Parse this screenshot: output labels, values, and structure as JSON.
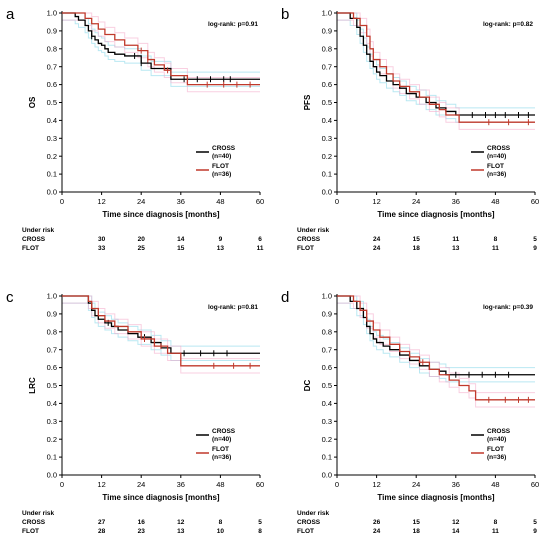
{
  "colors": {
    "cross": "#000000",
    "flot": "#c0392b",
    "ci_cross": "#7fd6e8",
    "ci_flot": "#f4a7c8"
  },
  "chart_data": [
    {
      "id": "a",
      "type": "line",
      "panel_label": "a",
      "ylabel": "OS",
      "xlabel": "Time since diagnosis [months]",
      "logrank": "log-rank: p=0.91",
      "xlim": [
        0,
        60
      ],
      "ylim": [
        0,
        1.0
      ],
      "xticks": [
        "0",
        "12",
        "24",
        "36",
        "48",
        "60"
      ],
      "yticks": [
        "0.0",
        "0.1",
        "0.2",
        "0.3",
        "0.4",
        "0.5",
        "0.6",
        "0.7",
        "0.8",
        "0.9",
        "1.0"
      ],
      "legend": {
        "position": "lower-right",
        "entries": [
          {
            "name": "CROSS",
            "sub": "(n=40)",
            "series": "cross"
          },
          {
            "name": "FLOT",
            "sub": "(n=36)",
            "series": "flot"
          }
        ]
      },
      "series": [
        {
          "key": "cross",
          "name": "CROSS",
          "x": [
            0,
            4,
            5,
            7,
            8,
            9,
            10,
            11,
            12,
            13,
            14,
            16,
            19,
            21,
            24,
            27,
            33,
            60
          ],
          "y": [
            1.0,
            0.98,
            0.96,
            0.93,
            0.9,
            0.87,
            0.85,
            0.83,
            0.82,
            0.8,
            0.78,
            0.77,
            0.76,
            0.76,
            0.72,
            0.69,
            0.63,
            0.63
          ],
          "censor": [
            [
              9,
              0.87
            ],
            [
              22,
              0.76
            ],
            [
              24,
              0.72
            ],
            [
              37,
              0.63
            ],
            [
              41,
              0.63
            ],
            [
              45,
              0.63
            ],
            [
              49,
              0.63
            ],
            [
              51,
              0.63
            ]
          ]
        },
        {
          "key": "flot",
          "name": "FLOT",
          "x": [
            0,
            7,
            9,
            11,
            13,
            16,
            19,
            23,
            26,
            28,
            31,
            33,
            38,
            60
          ],
          "y": [
            1.0,
            0.97,
            0.94,
            0.91,
            0.88,
            0.85,
            0.82,
            0.79,
            0.74,
            0.71,
            0.68,
            0.65,
            0.6,
            0.6
          ],
          "censor": [
            [
              24,
              0.79
            ],
            [
              26,
              0.74
            ],
            [
              32,
              0.68
            ],
            [
              44,
              0.6
            ],
            [
              49,
              0.6
            ],
            [
              53,
              0.6
            ],
            [
              57,
              0.6
            ]
          ]
        }
      ],
      "risk": {
        "heading": "Under risk",
        "times": [
          0,
          12,
          24,
          36,
          48,
          60
        ],
        "rows": [
          {
            "label": "CROSS",
            "values": [
              "",
              "30",
              "20",
              "14",
              "9",
              "6"
            ]
          },
          {
            "label": "FLOT",
            "values": [
              "",
              "33",
              "25",
              "15",
              "13",
              "11"
            ]
          }
        ]
      }
    },
    {
      "id": "b",
      "type": "line",
      "panel_label": "b",
      "ylabel": "PFS",
      "xlabel": "Time since diagnosis [months]",
      "logrank": "log-rank: p=0.82",
      "xlim": [
        0,
        60
      ],
      "ylim": [
        0,
        1.0
      ],
      "xticks": [
        "0",
        "12",
        "24",
        "36",
        "48",
        "60"
      ],
      "yticks": [
        "0.0",
        "0.1",
        "0.2",
        "0.3",
        "0.4",
        "0.5",
        "0.6",
        "0.7",
        "0.8",
        "0.9",
        "1.0"
      ],
      "legend": {
        "position": "lower-right",
        "entries": [
          {
            "name": "CROSS",
            "sub": "(n=40)",
            "series": "cross"
          },
          {
            "name": "FLOT",
            "sub": "(n=36)",
            "series": "flot"
          }
        ]
      },
      "series": [
        {
          "key": "cross",
          "name": "CROSS",
          "x": [
            0,
            4,
            6,
            7,
            8,
            9,
            10,
            11,
            12,
            13,
            15,
            17,
            19,
            21,
            24,
            27,
            30,
            33,
            36,
            60
          ],
          "y": [
            1.0,
            0.97,
            0.92,
            0.87,
            0.82,
            0.77,
            0.73,
            0.7,
            0.67,
            0.65,
            0.62,
            0.6,
            0.58,
            0.55,
            0.53,
            0.5,
            0.47,
            0.45,
            0.43,
            0.43
          ],
          "censor": [
            [
              41,
              0.43
            ],
            [
              45,
              0.43
            ],
            [
              48,
              0.43
            ],
            [
              51,
              0.43
            ],
            [
              55,
              0.43
            ],
            [
              58,
              0.43
            ]
          ]
        },
        {
          "key": "flot",
          "name": "FLOT",
          "x": [
            0,
            5,
            7,
            9,
            10,
            11,
            13,
            15,
            17,
            19,
            22,
            25,
            28,
            31,
            33,
            37,
            60
          ],
          "y": [
            1.0,
            0.97,
            0.93,
            0.87,
            0.8,
            0.74,
            0.7,
            0.66,
            0.62,
            0.59,
            0.56,
            0.53,
            0.49,
            0.46,
            0.43,
            0.39,
            0.39
          ],
          "censor": [
            [
              46,
              0.39
            ],
            [
              52,
              0.39
            ],
            [
              58,
              0.39
            ]
          ]
        }
      ],
      "risk": {
        "heading": "Under risk",
        "times": [
          0,
          12,
          24,
          36,
          48,
          60
        ],
        "rows": [
          {
            "label": "CROSS",
            "values": [
              "",
              "24",
              "15",
              "11",
              "8",
              "5"
            ]
          },
          {
            "label": "FLOT",
            "values": [
              "",
              "24",
              "18",
              "13",
              "11",
              "9"
            ]
          }
        ]
      }
    },
    {
      "id": "c",
      "type": "line",
      "panel_label": "c",
      "ylabel": "LRC",
      "xlabel": "Time since diagnosis [months]",
      "logrank": "log-rank: p=0.81",
      "xlim": [
        0,
        60
      ],
      "ylim": [
        0,
        1.0
      ],
      "xticks": [
        "0",
        "12",
        "24",
        "36",
        "48",
        "60"
      ],
      "yticks": [
        "0.0",
        "0.1",
        "0.2",
        "0.3",
        "0.4",
        "0.5",
        "0.6",
        "0.7",
        "0.8",
        "0.9",
        "1.0"
      ],
      "legend": {
        "position": "lower-right",
        "entries": [
          {
            "name": "CROSS",
            "sub": "(n=40)",
            "series": "cross"
          },
          {
            "name": "FLOT",
            "sub": "(n=36)",
            "series": "flot"
          }
        ]
      },
      "series": [
        {
          "key": "cross",
          "name": "CROSS",
          "x": [
            0,
            8,
            9,
            10,
            11,
            13,
            15,
            17,
            20,
            23,
            27,
            30,
            33,
            60
          ],
          "y": [
            1.0,
            0.96,
            0.92,
            0.89,
            0.87,
            0.85,
            0.83,
            0.81,
            0.79,
            0.77,
            0.74,
            0.71,
            0.68,
            0.68
          ],
          "censor": [
            [
              14,
              0.85
            ],
            [
              25,
              0.77
            ],
            [
              37,
              0.68
            ],
            [
              42,
              0.68
            ],
            [
              46,
              0.68
            ],
            [
              50,
              0.68
            ]
          ]
        },
        {
          "key": "flot",
          "name": "FLOT",
          "x": [
            0,
            8,
            9,
            11,
            13,
            16,
            20,
            24,
            28,
            32,
            36,
            60
          ],
          "y": [
            1.0,
            0.97,
            0.93,
            0.89,
            0.86,
            0.83,
            0.8,
            0.76,
            0.72,
            0.68,
            0.61,
            0.61
          ],
          "censor": [
            [
              25,
              0.76
            ],
            [
              30,
              0.72
            ],
            [
              46,
              0.61
            ],
            [
              52,
              0.61
            ],
            [
              57,
              0.61
            ]
          ]
        }
      ],
      "risk": {
        "heading": "Under risk",
        "times": [
          0,
          12,
          24,
          36,
          48,
          60
        ],
        "rows": [
          {
            "label": "CROSS",
            "values": [
              "",
              "27",
              "16",
              "12",
              "8",
              "5"
            ]
          },
          {
            "label": "FLOT",
            "values": [
              "",
              "28",
              "23",
              "13",
              "10",
              "8"
            ]
          }
        ]
      }
    },
    {
      "id": "d",
      "type": "line",
      "panel_label": "d",
      "ylabel": "DC",
      "xlabel": "Time since diagnosis [months]",
      "logrank": "log-rank: p=0.39",
      "xlim": [
        0,
        60
      ],
      "ylim": [
        0,
        1.0
      ],
      "xticks": [
        "0",
        "12",
        "24",
        "36",
        "48",
        "60"
      ],
      "yticks": [
        "0.0",
        "0.1",
        "0.2",
        "0.3",
        "0.4",
        "0.5",
        "0.6",
        "0.7",
        "0.8",
        "0.9",
        "1.0"
      ],
      "legend": {
        "position": "lower-right",
        "entries": [
          {
            "name": "CROSS",
            "sub": "(n=40)",
            "series": "cross"
          },
          {
            "name": "FLOT",
            "sub": "(n=36)",
            "series": "flot"
          }
        ]
      },
      "series": [
        {
          "key": "cross",
          "name": "CROSS",
          "x": [
            0,
            4,
            6,
            8,
            9,
            10,
            11,
            12,
            14,
            16,
            19,
            22,
            25,
            28,
            31,
            33,
            60
          ],
          "y": [
            1.0,
            0.97,
            0.93,
            0.88,
            0.83,
            0.79,
            0.76,
            0.74,
            0.72,
            0.7,
            0.67,
            0.64,
            0.61,
            0.59,
            0.58,
            0.56,
            0.56
          ],
          "censor": [
            [
              36,
              0.56
            ],
            [
              40,
              0.56
            ],
            [
              44,
              0.56
            ],
            [
              48,
              0.56
            ],
            [
              52,
              0.56
            ]
          ]
        },
        {
          "key": "flot",
          "name": "FLOT",
          "x": [
            0,
            5,
            7,
            9,
            11,
            13,
            16,
            19,
            22,
            25,
            28,
            31,
            34,
            37,
            40,
            42,
            60
          ],
          "y": [
            1.0,
            0.97,
            0.92,
            0.86,
            0.81,
            0.77,
            0.73,
            0.69,
            0.66,
            0.63,
            0.59,
            0.56,
            0.53,
            0.5,
            0.47,
            0.42,
            0.42
          ],
          "censor": [
            [
              26,
              0.63
            ],
            [
              46,
              0.42
            ],
            [
              51,
              0.42
            ],
            [
              55,
              0.42
            ],
            [
              58,
              0.42
            ]
          ]
        }
      ],
      "risk": {
        "heading": "Under risk",
        "times": [
          0,
          12,
          24,
          36,
          48,
          60
        ],
        "rows": [
          {
            "label": "CROSS",
            "values": [
              "",
              "26",
              "15",
              "12",
              "8",
              "5"
            ]
          },
          {
            "label": "FLOT",
            "values": [
              "",
              "24",
              "18",
              "14",
              "11",
              "9"
            ]
          }
        ]
      }
    }
  ]
}
